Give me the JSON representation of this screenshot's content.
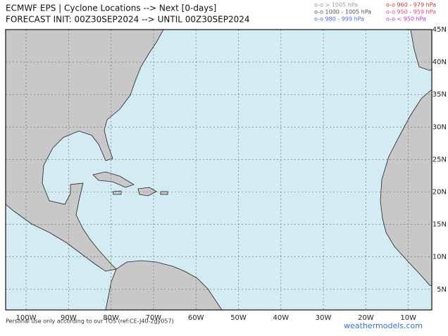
{
  "header": {
    "title": "ECMWF EPS | Cyclone Locations --> Next [0-days]",
    "subtitle": "FORECAST INIT: 00Z30SEP2024 --> UNTIL 00Z30SEP2024"
  },
  "legend": [
    {
      "label": "o-o > 1005 hPa",
      "color": "#9a9a9a"
    },
    {
      "label": "o-o 1000 - 1005 hPa",
      "color": "#555555"
    },
    {
      "label": "o-o 980 - 999 hPa",
      "color": "#4a6fd8"
    },
    {
      "label": "o-o 960 - 979 hPa",
      "color": "#c0392b"
    },
    {
      "label": "o-o 950 - 959 hPa",
      "color": "#e0457b"
    },
    {
      "label": "o-o < 950 hPa",
      "color": "#c436c4"
    }
  ],
  "map": {
    "lat_labels": [
      "45N",
      "40N",
      "35N",
      "30N",
      "25N",
      "20N",
      "15N",
      "10N",
      "5N"
    ],
    "lon_labels": [
      "100W",
      "90W",
      "80W",
      "70W",
      "60W",
      "50W",
      "40W",
      "30W",
      "20W",
      "10W"
    ]
  },
  "footer": {
    "notice": "Personal use only according to our TOS (ref:CE-J40-2gy057)",
    "watermark": "weathermodels.com"
  }
}
